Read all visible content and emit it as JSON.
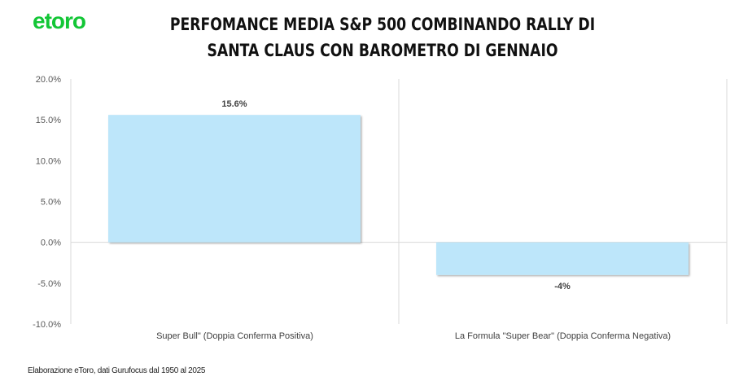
{
  "logo": "etoro",
  "title": "PERFOMANCE MEDIA S&P 500 COMBINANDO RALLY DI SANTA CLAUS CON BAROMETRO DI GENNAIO",
  "footnote": "Elaborazione eToro, dati Gurufocus dal 1950 al 2025",
  "chart_data": {
    "type": "bar",
    "title": "PERFOMANCE MEDIA S&P 500 COMBINANDO RALLY DI SANTA CLAUS CON BAROMETRO DI GENNAIO",
    "categories": [
      "Super Bull\" (Doppia Conferma Positiva)",
      "La Formula \"Super Bear\" (Doppia Conferma Negativa)"
    ],
    "values": [
      15.6,
      -4
    ],
    "data_labels": [
      "15.6%",
      "-4%"
    ],
    "ylim": [
      -10,
      20
    ],
    "yticks": [
      "20.0%",
      "15.0%",
      "10.0%",
      "5.0%",
      "0.0%",
      "-5.0%",
      "-10.0%"
    ],
    "bar_color": "#bde6fa",
    "grid": false
  }
}
